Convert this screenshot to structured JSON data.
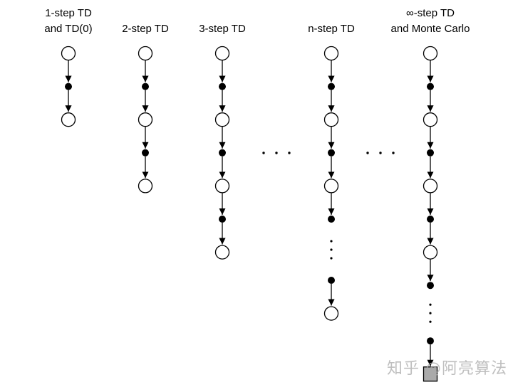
{
  "columns": [
    {
      "label": [
        "1-step TD",
        "and TD(0)"
      ],
      "nodes": [
        "state",
        "action",
        "state"
      ]
    },
    {
      "label": [
        "2-step TD"
      ],
      "nodes": [
        "state",
        "action",
        "state",
        "action",
        "state"
      ]
    },
    {
      "label": [
        "3-step TD"
      ],
      "nodes": [
        "state",
        "action",
        "state",
        "action",
        "state",
        "action",
        "state"
      ]
    },
    {
      "label": [
        "n-step TD"
      ],
      "nodes": [
        "state",
        "action",
        "state",
        "action",
        "state",
        "action",
        "ellipsis",
        "action",
        "state"
      ]
    },
    {
      "label": [
        "∞-step TD",
        "and Monte Carlo"
      ],
      "nodes": [
        "state",
        "action",
        "state",
        "action",
        "state",
        "action",
        "state",
        "action",
        "ellipsis",
        "action",
        "terminal"
      ]
    }
  ],
  "colors": {
    "line": "#000000",
    "terminal_fill": "#aaaaaa"
  },
  "watermark": "知乎 @阿亮算法"
}
